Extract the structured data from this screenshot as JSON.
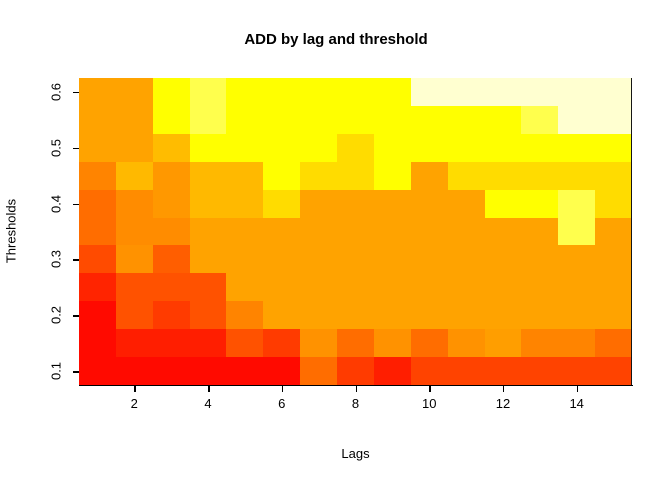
{
  "figure": {
    "title": "ADD by lag and threshold",
    "xlabel": "Lags",
    "ylabel": "Thresholds",
    "background": "#FFFFFF"
  },
  "chart_data": {
    "type": "heatmap",
    "title": "ADD by lag and threshold",
    "xlabel": "Lags",
    "ylabel": "Thresholds",
    "x_range": [
      0.5,
      15.5
    ],
    "y_range": [
      0.075,
      0.625
    ],
    "x_values": [
      1,
      2,
      3,
      4,
      5,
      6,
      7,
      8,
      9,
      10,
      11,
      12,
      13,
      14,
      15
    ],
    "x_tick_values": [
      2,
      4,
      6,
      8,
      10,
      12,
      14
    ],
    "x_tick_labels": [
      "2",
      "4",
      "6",
      "8",
      "10",
      "12",
      "14"
    ],
    "y_tick_values": [
      0.1,
      0.2,
      0.3,
      0.4,
      0.5,
      0.6
    ],
    "y_tick_labels": [
      "0.1",
      "0.2",
      "0.3",
      "0.4",
      "0.5",
      "0.6"
    ],
    "grid": "off",
    "legend": "none",
    "palette_style": "heat-colors (red = low, through orange and yellow, to cream = high)",
    "rows": [
      {
        "threshold": 0.6,
        "colors": [
          "#FFA300",
          "#FFA300",
          "#FFFF00",
          "#FFFF4D",
          "#FFFF00",
          "#FFFF00",
          "#FFFF00",
          "#FFFF00",
          "#FFFF00",
          "#FFFFD0",
          "#FFFFD0",
          "#FFFFD0",
          "#FFFFD0",
          "#FFFFD0",
          "#FFFFD0"
        ]
      },
      {
        "threshold": 0.55,
        "colors": [
          "#FFA300",
          "#FFA300",
          "#FFFF00",
          "#FFFF4D",
          "#FFFF00",
          "#FFFF00",
          "#FFFF00",
          "#FFFF00",
          "#FFFF00",
          "#FFFF00",
          "#FFFF00",
          "#FFFF00",
          "#FFFF4D",
          "#FFFFD0",
          "#FFFFD0"
        ]
      },
      {
        "threshold": 0.5,
        "colors": [
          "#FFA300",
          "#FFA300",
          "#FFBC00",
          "#FFFF00",
          "#FFFF00",
          "#FFFF00",
          "#FFFF00",
          "#FFDC00",
          "#FFFF00",
          "#FFFF00",
          "#FFFF00",
          "#FFFF00",
          "#FFFF00",
          "#FFFF00",
          "#FFFF00"
        ]
      },
      {
        "threshold": 0.45,
        "colors": [
          "#FF8400",
          "#FFB900",
          "#FF9800",
          "#FFB900",
          "#FFB900",
          "#FFFF00",
          "#FFDC00",
          "#FFDC00",
          "#FFFF00",
          "#FFA300",
          "#FFDC00",
          "#FFDC00",
          "#FFDC00",
          "#FFDC00",
          "#FFDC00"
        ]
      },
      {
        "threshold": 0.4,
        "colors": [
          "#FF6D00",
          "#FF8C00",
          "#FF9800",
          "#FFB900",
          "#FFB900",
          "#FFDC00",
          "#FFA300",
          "#FFA300",
          "#FFA300",
          "#FFA300",
          "#FFA300",
          "#FFFF00",
          "#FFFF00",
          "#FFFF4D",
          "#FFDC00"
        ]
      },
      {
        "threshold": 0.35,
        "colors": [
          "#FF6D00",
          "#FF8C00",
          "#FF8C00",
          "#FFA300",
          "#FFA300",
          "#FFA300",
          "#FFA300",
          "#FFA300",
          "#FFA300",
          "#FFA300",
          "#FFA300",
          "#FFA300",
          "#FFA300",
          "#FFFF4D",
          "#FFA300"
        ]
      },
      {
        "threshold": 0.3,
        "colors": [
          "#FF4B00",
          "#FF9200",
          "#FF5E00",
          "#FFA300",
          "#FFA300",
          "#FFA300",
          "#FFA300",
          "#FFA300",
          "#FFA300",
          "#FFA300",
          "#FFA300",
          "#FFA300",
          "#FFA300",
          "#FFA300",
          "#FFA300"
        ]
      },
      {
        "threshold": 0.25,
        "colors": [
          "#FF2400",
          "#FF5200",
          "#FF5200",
          "#FF5200",
          "#FFA300",
          "#FFA300",
          "#FFA300",
          "#FFA300",
          "#FFA300",
          "#FFA300",
          "#FFA300",
          "#FFA300",
          "#FFA300",
          "#FFA300",
          "#FFA300"
        ]
      },
      {
        "threshold": 0.2,
        "colors": [
          "#FF0A00",
          "#FF5200",
          "#FF3B00",
          "#FF5200",
          "#FF8400",
          "#FFA300",
          "#FFA300",
          "#FFA300",
          "#FFA300",
          "#FFA300",
          "#FFA300",
          "#FFA300",
          "#FFA300",
          "#FFA300",
          "#FFA300"
        ]
      },
      {
        "threshold": 0.15,
        "colors": [
          "#FF0A00",
          "#FF1E00",
          "#FF1E00",
          "#FF1E00",
          "#FF5200",
          "#FF3B00",
          "#FF9200",
          "#FF6D00",
          "#FF9200",
          "#FF6D00",
          "#FF9200",
          "#FF9E00",
          "#FF8400",
          "#FF8400",
          "#FF6D00"
        ]
      },
      {
        "threshold": 0.1,
        "colors": [
          "#FF0A00",
          "#FF0A00",
          "#FF0A00",
          "#FF0A00",
          "#FF0A00",
          "#FF0A00",
          "#FF6D00",
          "#FF3B00",
          "#FF1E00",
          "#FF4300",
          "#FF4300",
          "#FF4300",
          "#FF4300",
          "#FF4300",
          "#FF4300"
        ]
      }
    ]
  }
}
